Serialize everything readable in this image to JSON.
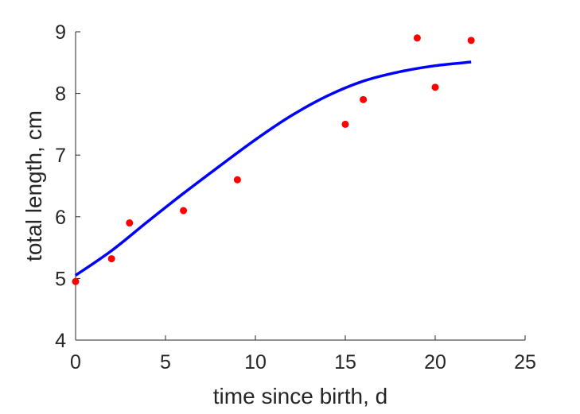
{
  "chart_data": {
    "type": "scatter",
    "title": "",
    "xlabel": "time since birth, d",
    "ylabel": "total length, cm",
    "xlim": [
      0,
      25
    ],
    "ylim": [
      4,
      9
    ],
    "x_ticks": [
      0,
      5,
      10,
      15,
      20,
      25
    ],
    "y_ticks": [
      4,
      5,
      6,
      7,
      8,
      9
    ],
    "grid": false,
    "legend": "none",
    "series": [
      {
        "kind": "points",
        "color": "#ff0000",
        "x": [
          0,
          2,
          3,
          6,
          9,
          15,
          16,
          19,
          20,
          22
        ],
        "y": [
          4.95,
          5.32,
          5.9,
          6.1,
          6.6,
          7.5,
          7.9,
          8.9,
          8.1,
          8.86
        ]
      },
      {
        "kind": "fitted-curve",
        "color": "#0000ff",
        "x": [
          0,
          2,
          4,
          6,
          8,
          10,
          12,
          14,
          16,
          18,
          20,
          22
        ],
        "y": [
          5.05,
          5.45,
          5.92,
          6.38,
          6.82,
          7.25,
          7.64,
          7.96,
          8.2,
          8.35,
          8.45,
          8.51
        ]
      }
    ]
  }
}
